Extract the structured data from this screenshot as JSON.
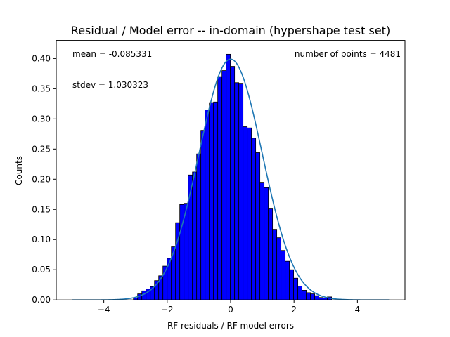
{
  "chart_data": {
    "type": "bar",
    "title": "Residual / Model error -- in-domain (hypershape test set)",
    "xlabel": "RF residuals / RF model errors",
    "ylabel": "Counts",
    "xlim": [
      -5.5,
      5.5
    ],
    "ylim": [
      0,
      0.43
    ],
    "xticks": [
      -4,
      -2,
      0,
      2,
      4
    ],
    "yticks": [
      0.0,
      0.05,
      0.1,
      0.15,
      0.2,
      0.25,
      0.3,
      0.35,
      0.4
    ],
    "grid": false,
    "annotations": {
      "mean": "mean = -0.085331",
      "stdev": "stdev = 1.030323",
      "npoints": "number of points = 4481"
    },
    "histogram": {
      "bin_width": 0.133,
      "bar_color": "#0000ff",
      "edge_color": "#000000",
      "bins": [
        {
          "x": -3.0,
          "y": 0.003
        },
        {
          "x": -2.867,
          "y": 0.01
        },
        {
          "x": -2.734,
          "y": 0.015
        },
        {
          "x": -2.601,
          "y": 0.018
        },
        {
          "x": -2.468,
          "y": 0.022
        },
        {
          "x": -2.335,
          "y": 0.032
        },
        {
          "x": -2.202,
          "y": 0.04
        },
        {
          "x": -2.069,
          "y": 0.056
        },
        {
          "x": -1.936,
          "y": 0.069
        },
        {
          "x": -1.803,
          "y": 0.088
        },
        {
          "x": -1.67,
          "y": 0.128
        },
        {
          "x": -1.537,
          "y": 0.158
        },
        {
          "x": -1.404,
          "y": 0.16
        },
        {
          "x": -1.271,
          "y": 0.207
        },
        {
          "x": -1.138,
          "y": 0.212
        },
        {
          "x": -1.005,
          "y": 0.242
        },
        {
          "x": -0.872,
          "y": 0.281
        },
        {
          "x": -0.739,
          "y": 0.315
        },
        {
          "x": -0.606,
          "y": 0.327
        },
        {
          "x": -0.473,
          "y": 0.328
        },
        {
          "x": -0.34,
          "y": 0.37
        },
        {
          "x": -0.207,
          "y": 0.38
        },
        {
          "x": -0.074,
          "y": 0.407
        },
        {
          "x": 0.059,
          "y": 0.387
        },
        {
          "x": 0.192,
          "y": 0.36
        },
        {
          "x": 0.325,
          "y": 0.359
        },
        {
          "x": 0.458,
          "y": 0.287
        },
        {
          "x": 0.591,
          "y": 0.285
        },
        {
          "x": 0.724,
          "y": 0.268
        },
        {
          "x": 0.857,
          "y": 0.244
        },
        {
          "x": 0.99,
          "y": 0.195
        },
        {
          "x": 1.123,
          "y": 0.186
        },
        {
          "x": 1.256,
          "y": 0.152
        },
        {
          "x": 1.389,
          "y": 0.117
        },
        {
          "x": 1.522,
          "y": 0.103
        },
        {
          "x": 1.655,
          "y": 0.082
        },
        {
          "x": 1.788,
          "y": 0.064
        },
        {
          "x": 1.921,
          "y": 0.05
        },
        {
          "x": 2.054,
          "y": 0.036
        },
        {
          "x": 2.187,
          "y": 0.023
        },
        {
          "x": 2.32,
          "y": 0.016
        },
        {
          "x": 2.453,
          "y": 0.012
        },
        {
          "x": 2.586,
          "y": 0.01
        },
        {
          "x": 2.719,
          "y": 0.007
        },
        {
          "x": 2.852,
          "y": 0.004
        },
        {
          "x": 2.985,
          "y": 0.003
        },
        {
          "x": 3.118,
          "y": 0.005
        }
      ]
    },
    "curve": {
      "type": "line",
      "color": "#1f77b4",
      "description_of_shape": "standard normal pdf",
      "mu": 0,
      "sigma": 1,
      "x_range": [
        -5,
        5
      ]
    }
  }
}
